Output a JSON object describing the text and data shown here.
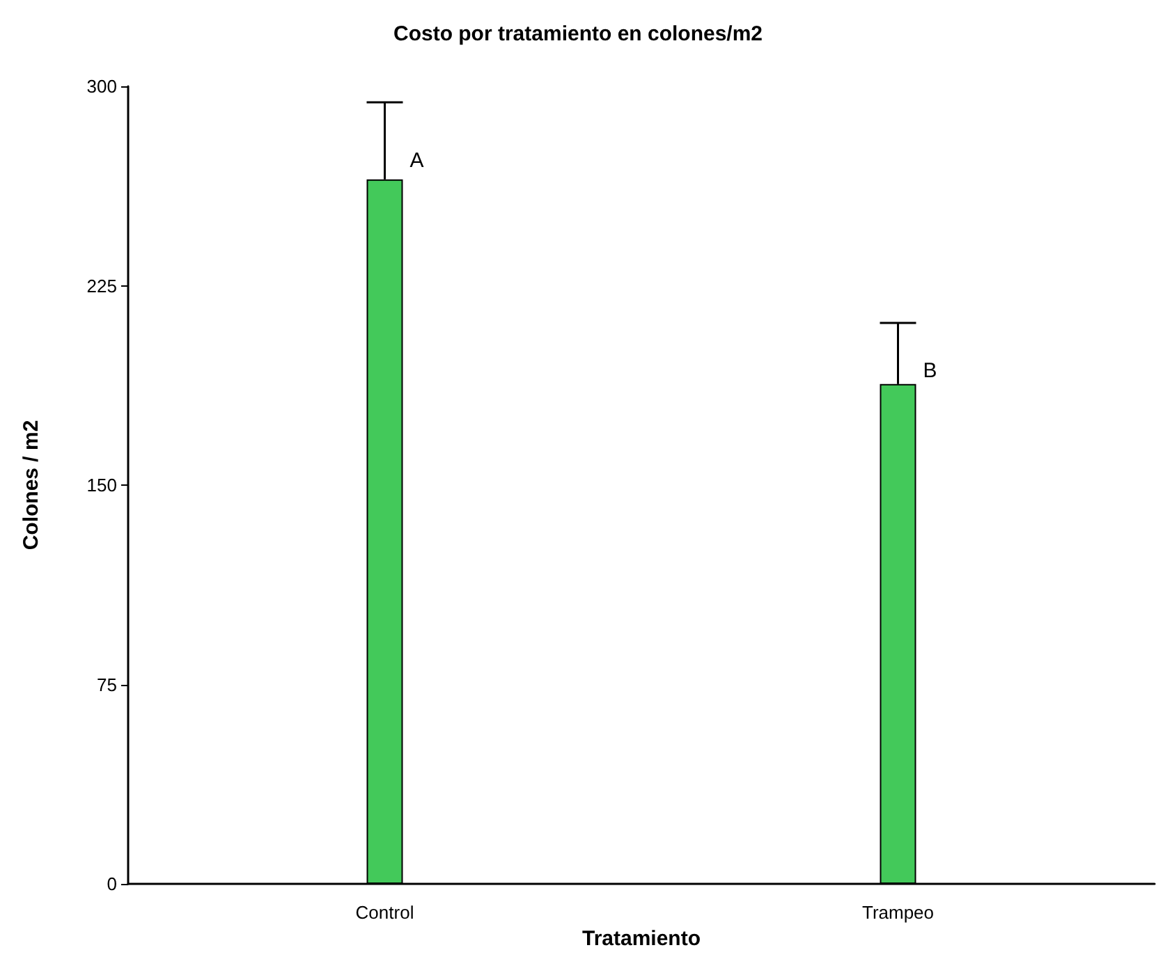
{
  "chart_data": {
    "type": "bar",
    "title": "Costo por tratamiento en colones/m2",
    "xlabel": "Tratamiento",
    "ylabel": "Colones / m2",
    "categories": [
      "Control",
      "Trampeo"
    ],
    "series": [
      {
        "color": "#43c95a",
        "values": [
          265,
          188
        ],
        "errors": [
          [
            265,
            294
          ],
          [
            188,
            211
          ]
        ]
      }
    ],
    "ylim": [
      0,
      300
    ],
    "yticks": [
      0,
      75,
      150,
      225,
      300
    ],
    "grid": false,
    "annotations": [
      {
        "text": "A",
        "x": "Control",
        "y": 272
      },
      {
        "text": "B",
        "x": "Trampeo",
        "y": 193
      }
    ]
  }
}
